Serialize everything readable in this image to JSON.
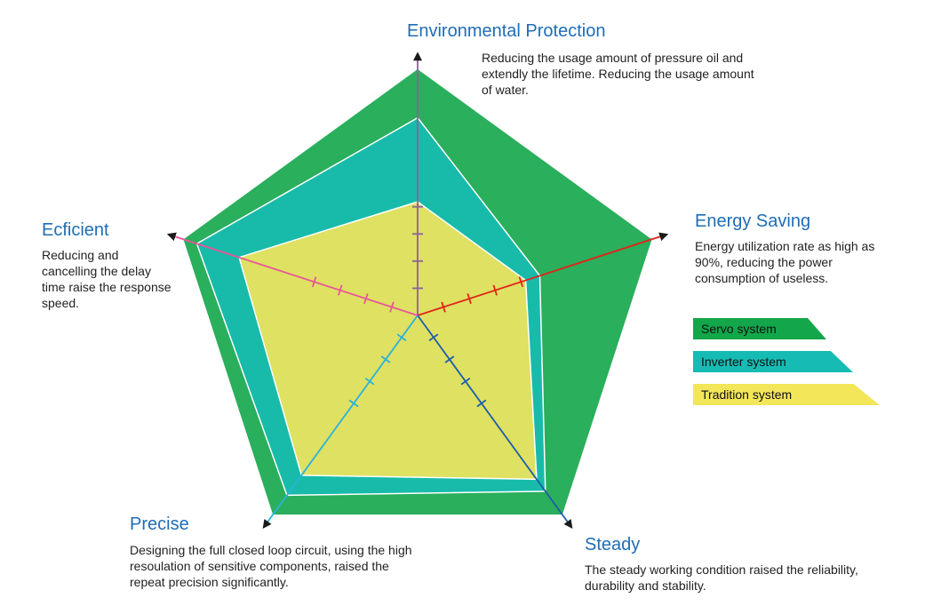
{
  "chart_data": {
    "type": "radar",
    "title": "",
    "axes": [
      {
        "key": "environmental",
        "name": "Environmental Protection",
        "description": "Reducing the usage amount of pressure oil and extendly the lifetime. Reducing the usage amount of water.",
        "color": "#8e5fa0"
      },
      {
        "key": "energy",
        "name": "Energy Saving",
        "description": "Energy utilization rate as high as 90%, reducing the power consumption of useless.",
        "color": "#e2231a"
      },
      {
        "key": "steady",
        "name": "Steady",
        "description": "The steady working condition raised the reliability, durability and stability.",
        "color": "#1c5fa8"
      },
      {
        "key": "precise",
        "name": "Precise",
        "description": "Designing the full closed loop circuit, using the high resoulation of sensitive components, raised the repeat precision significantly.",
        "color": "#29b2dc"
      },
      {
        "key": "efficient",
        "name": "Ecficient",
        "description": "Reducing and cancelling the delay time raise the response speed.",
        "color": "#e8559a"
      }
    ],
    "range": [
      0,
      5
    ],
    "series": [
      {
        "name": "Servo system",
        "color": "#13a64a",
        "values": [
          5.0,
          5.0,
          5.0,
          5.0,
          5.0
        ]
      },
      {
        "name": "Inverter system",
        "color": "#16bcb3",
        "values": [
          4.0,
          2.6,
          4.4,
          4.5,
          4.7
        ]
      },
      {
        "name": "Tradition system",
        "color": "#f4e659",
        "values": [
          2.3,
          2.3,
          4.1,
          4.0,
          3.8
        ]
      }
    ],
    "legend_position": "right"
  }
}
